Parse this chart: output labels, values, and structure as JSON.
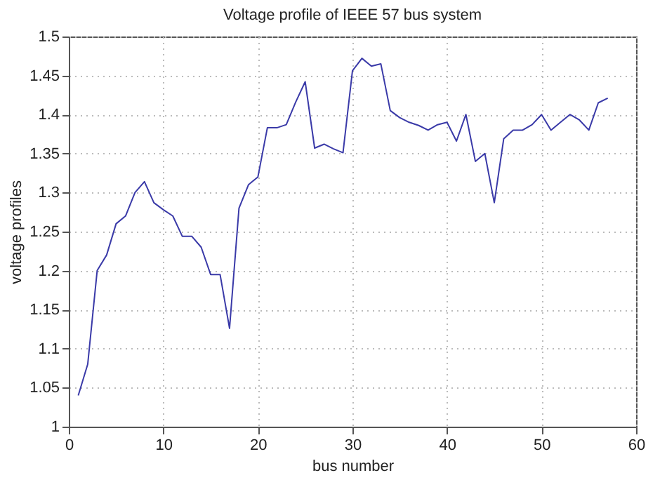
{
  "chart_data": {
    "type": "line",
    "title": "Voltage profile of IEEE 57 bus system",
    "xlabel": "bus number",
    "ylabel": "voltage profiles",
    "x": [
      1,
      2,
      3,
      4,
      5,
      6,
      7,
      8,
      9,
      10,
      11,
      12,
      13,
      14,
      15,
      16,
      17,
      18,
      19,
      20,
      21,
      22,
      23,
      24,
      25,
      26,
      27,
      28,
      29,
      30,
      31,
      32,
      33,
      34,
      35,
      36,
      37,
      38,
      39,
      40,
      41,
      42,
      43,
      44,
      45,
      46,
      47,
      48,
      49,
      50,
      51,
      52,
      53,
      54,
      55,
      56,
      57
    ],
    "series": [
      {
        "color": "#3a3aa8",
        "values": [
          1.04,
          1.08,
          1.2,
          1.22,
          1.26,
          1.27,
          1.3,
          1.314,
          1.287,
          1.278,
          1.27,
          1.244,
          1.244,
          1.23,
          1.195,
          1.195,
          1.126,
          1.28,
          1.31,
          1.32,
          1.383,
          1.383,
          1.387,
          1.416,
          1.442,
          1.357,
          1.362,
          1.356,
          1.351,
          1.456,
          1.472,
          1.462,
          1.465,
          1.405,
          1.396,
          1.39,
          1.386,
          1.38,
          1.387,
          1.39,
          1.366,
          1.4,
          1.34,
          1.35,
          1.287,
          1.369,
          1.38,
          1.38,
          1.387,
          1.4,
          1.38,
          1.39,
          1.4,
          1.393,
          1.38,
          1.415,
          1.421
        ]
      }
    ],
    "xlim": [
      0,
      60
    ],
    "xticks": [
      0,
      10,
      20,
      30,
      40,
      50,
      60
    ],
    "ylim": [
      1,
      1.5
    ],
    "yticks": [
      1,
      1.05,
      1.1,
      1.15,
      1.2,
      1.25,
      1.3,
      1.35,
      1.4,
      1.45,
      1.5
    ],
    "grid": true
  }
}
